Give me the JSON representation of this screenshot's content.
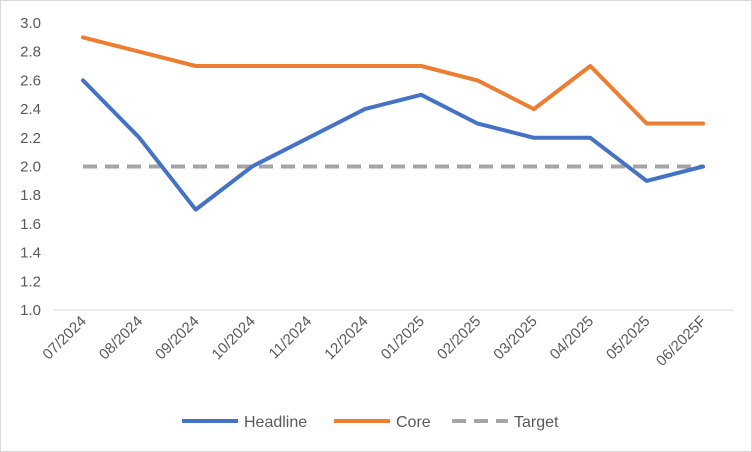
{
  "chart_data": {
    "type": "line",
    "categories": [
      "07/2024",
      "08/2024",
      "09/2024",
      "10/2024",
      "11/2024",
      "12/2024",
      "01/2025",
      "02/2025",
      "03/2025",
      "04/2025",
      "05/2025",
      "06/2025F"
    ],
    "series": [
      {
        "name": "Headline",
        "color": "#4472c4",
        "dash": "solid",
        "values": [
          2.6,
          2.2,
          1.7,
          2.0,
          2.2,
          2.4,
          2.5,
          2.3,
          2.2,
          2.2,
          1.9,
          2.0
        ]
      },
      {
        "name": "Core",
        "color": "#ed7d31",
        "dash": "solid",
        "values": [
          2.9,
          2.8,
          2.7,
          2.7,
          2.7,
          2.7,
          2.7,
          2.6,
          2.4,
          2.7,
          2.3,
          2.3
        ]
      },
      {
        "name": "Target",
        "color": "#a5a5a5",
        "dash": "dashed",
        "values": [
          2.0,
          2.0,
          2.0,
          2.0,
          2.0,
          2.0,
          2.0,
          2.0,
          2.0,
          2.0,
          2.0,
          2.0
        ]
      }
    ],
    "ylim": [
      1.0,
      3.0
    ],
    "yticks": [
      "1.0",
      "1.2",
      "1.4",
      "1.6",
      "1.8",
      "2.0",
      "2.2",
      "2.4",
      "2.6",
      "2.8",
      "3.0"
    ],
    "title": "",
    "xlabel": "",
    "ylabel": "",
    "grid": false,
    "legend": "bottom"
  }
}
